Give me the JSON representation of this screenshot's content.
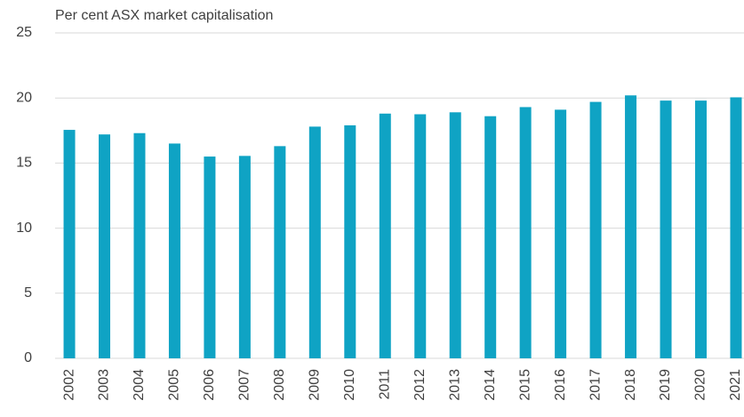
{
  "chart_data": {
    "type": "bar",
    "title": "Per cent ASX market capitalisation",
    "categories": [
      "2002",
      "2003",
      "2004",
      "2005",
      "2006",
      "2007",
      "2008",
      "2009",
      "2010",
      "2011",
      "2012",
      "2013",
      "2014",
      "2015",
      "2016",
      "2017",
      "2018",
      "2019",
      "2020",
      "2021"
    ],
    "values": [
      17.55,
      17.2,
      17.3,
      16.5,
      15.5,
      15.55,
      16.3,
      17.8,
      17.9,
      18.8,
      18.75,
      18.9,
      18.6,
      19.3,
      19.1,
      19.7,
      20.2,
      19.8,
      19.8,
      20.05
    ],
    "color": "#0fa3c4",
    "ylim": [
      0,
      25
    ],
    "yticks": [
      0,
      5,
      10,
      15,
      20,
      25
    ],
    "grid": true
  }
}
